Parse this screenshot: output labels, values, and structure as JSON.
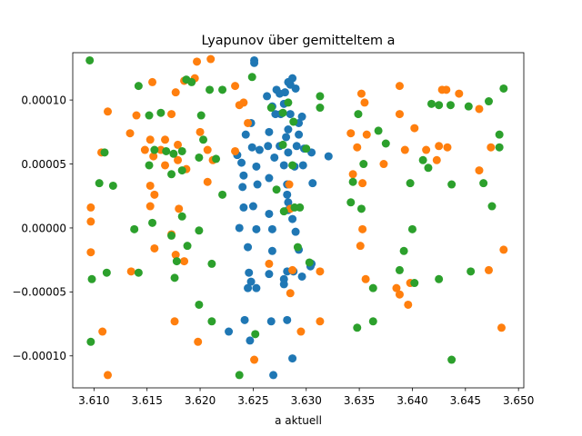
{
  "chart_data": {
    "type": "scatter",
    "title": "Lyapunov über gemitteltem a",
    "xlabel": "a aktuell",
    "ylabel": "",
    "xlim": [
      3.608,
      3.6505
    ],
    "ylim": [
      -0.000125,
      0.000137
    ],
    "xticks": [
      3.61,
      3.615,
      3.62,
      3.625,
      3.63,
      3.635,
      3.64,
      3.645,
      3.65
    ],
    "xtick_labels": [
      "3.610",
      "3.615",
      "3.620",
      "3.625",
      "3.630",
      "3.635",
      "3.640",
      "3.645",
      "3.650"
    ],
    "yticks": [
      -0.0001,
      -5e-05,
      0.0,
      5e-05,
      0.0001
    ],
    "ytick_labels": [
      "−0.00010",
      "−0.00005",
      "0.00000",
      "0.00005",
      "0.00010"
    ],
    "grid": false,
    "legend": "none",
    "series": [
      {
        "color": "#1f77b4",
        "points": [
          [
            3.6251,
            0.000131
          ],
          [
            3.6251,
            0.000129
          ],
          [
            3.6283,
            0.000114
          ],
          [
            3.6287,
            0.000117
          ],
          [
            3.6272,
            0.000108
          ],
          [
            3.6275,
            0.000105
          ],
          [
            3.628,
            0.000106
          ],
          [
            3.6285,
            0.000112
          ],
          [
            3.629,
            0.000109
          ],
          [
            3.6263,
            0.000103
          ],
          [
            3.6268,
            9.5e-05
          ],
          [
            3.6279,
            9.7e-05
          ],
          [
            3.6271,
            8.9e-05
          ],
          [
            3.6276,
            8.9e-05
          ],
          [
            3.6285,
            8.9e-05
          ],
          [
            3.6296,
            8.7e-05
          ],
          [
            3.6293,
            8.2e-05
          ],
          [
            3.6248,
            8.2e-05
          ],
          [
            3.6283,
            7.7e-05
          ],
          [
            3.6265,
            7.5e-05
          ],
          [
            3.6293,
            7.3e-05
          ],
          [
            3.6243,
            7.3e-05
          ],
          [
            3.6281,
            7.1e-05
          ],
          [
            3.6264,
            6.4e-05
          ],
          [
            3.6275,
            6.4e-05
          ],
          [
            3.6291,
            6.4e-05
          ],
          [
            3.6298,
            6.2e-05
          ],
          [
            3.6249,
            6.3e-05
          ],
          [
            3.6256,
            6.1e-05
          ],
          [
            3.6235,
            5.7e-05
          ],
          [
            3.627,
            5.5e-05
          ],
          [
            3.6283,
            5.9e-05
          ],
          [
            3.6305,
            5.9e-05
          ],
          [
            3.6321,
            5.6e-05
          ],
          [
            3.6239,
            5.1e-05
          ],
          [
            3.6253,
            4.8e-05
          ],
          [
            3.6279,
            4.9e-05
          ],
          [
            3.6289,
            4.8e-05
          ],
          [
            3.6265,
            3.9e-05
          ],
          [
            3.6297,
            4.9e-05
          ],
          [
            3.6241,
            4.1e-05
          ],
          [
            3.6254,
            3.4e-05
          ],
          [
            3.6282,
            3.4e-05
          ],
          [
            3.6306,
            3.5e-05
          ],
          [
            3.6282,
            2.6e-05
          ],
          [
            3.624,
            3.2e-05
          ],
          [
            3.6241,
            1.6e-05
          ],
          [
            3.6283,
            2e-05
          ],
          [
            3.625,
            1.7e-05
          ],
          [
            3.6265,
            1.1e-05
          ],
          [
            3.6283,
            1.4e-05
          ],
          [
            3.6237,
            0.0
          ],
          [
            3.6253,
            -1e-06
          ],
          [
            3.6268,
            -1e-06
          ],
          [
            3.6287,
            7e-06
          ],
          [
            3.629,
            -3e-06
          ],
          [
            3.6245,
            -1.5e-05
          ],
          [
            3.6268,
            -1.8e-05
          ],
          [
            3.6293,
            -1.7e-05
          ],
          [
            3.6305,
            -2.8e-05
          ],
          [
            3.6304,
            -3e-05
          ],
          [
            3.6246,
            -3.5e-05
          ],
          [
            3.6265,
            -3.6e-05
          ],
          [
            3.6282,
            -3.4e-05
          ],
          [
            3.6288,
            -3.4e-05
          ],
          [
            3.6296,
            -3.8e-05
          ],
          [
            3.6248,
            -4.2e-05
          ],
          [
            3.6279,
            -4e-05
          ],
          [
            3.6245,
            -4.7e-05
          ],
          [
            3.6253,
            -4.7e-05
          ],
          [
            3.6279,
            -4.4e-05
          ],
          [
            3.6242,
            -7.2e-05
          ],
          [
            3.6267,
            -7.3e-05
          ],
          [
            3.6282,
            -7.2e-05
          ],
          [
            3.6227,
            -8.1e-05
          ],
          [
            3.6247,
            -8.8e-05
          ],
          [
            3.6287,
            -0.000102
          ],
          [
            3.6269,
            -0.000115
          ]
        ]
      },
      {
        "color": "#ff7f0e",
        "points": [
          [
            3.621,
            0.000132
          ],
          [
            3.6197,
            0.00013
          ],
          [
            3.6195,
            0.000117
          ],
          [
            3.6177,
            0.000106
          ],
          [
            3.6185,
            0.000115
          ],
          [
            3.6155,
            0.000114
          ],
          [
            3.6233,
            0.000111
          ],
          [
            3.6241,
            9.8e-05
          ],
          [
            3.6237,
            9.6e-05
          ],
          [
            3.6173,
            8.9e-05
          ],
          [
            3.6113,
            9.1e-05
          ],
          [
            3.614,
            8.8e-05
          ],
          [
            3.62,
            7.5e-05
          ],
          [
            3.6245,
            8.2e-05
          ],
          [
            3.6134,
            7.4e-05
          ],
          [
            3.6167,
            6.9e-05
          ],
          [
            3.6153,
            6.9e-05
          ],
          [
            3.6179,
            6.5e-05
          ],
          [
            3.6148,
            6.1e-05
          ],
          [
            3.6207,
            6.1e-05
          ],
          [
            3.6163,
            6.1e-05
          ],
          [
            3.6107,
            5.9e-05
          ],
          [
            3.6156,
            5.6e-05
          ],
          [
            3.6179,
            5.3e-05
          ],
          [
            3.6212,
            5.3e-05
          ],
          [
            3.6167,
            4.9e-05
          ],
          [
            3.6187,
            4.6e-05
          ],
          [
            3.6233,
            6e-05
          ],
          [
            3.6153,
            3.3e-05
          ],
          [
            3.6207,
            3.6e-05
          ],
          [
            3.6157,
            2.6e-05
          ],
          [
            3.6097,
            1.6e-05
          ],
          [
            3.6153,
            1.7e-05
          ],
          [
            3.618,
            1.5e-05
          ],
          [
            3.6097,
            5e-06
          ],
          [
            3.6173,
            -5e-06
          ],
          [
            3.6157,
            -1.6e-05
          ],
          [
            3.6177,
            -2.1e-05
          ],
          [
            3.6185,
            -2.6e-05
          ],
          [
            3.6097,
            -1.9e-05
          ],
          [
            3.6135,
            -3.4e-05
          ],
          [
            3.6176,
            -7.3e-05
          ],
          [
            3.6198,
            -8.9e-05
          ],
          [
            3.6108,
            -8.1e-05
          ],
          [
            3.6113,
            -0.000115
          ],
          [
            3.6251,
            -0.000103
          ],
          [
            3.6265,
            -2.8e-05
          ],
          [
            3.6285,
            -5.1e-05
          ],
          [
            3.6295,
            -8.1e-05
          ],
          [
            3.6313,
            -3.4e-05
          ],
          [
            3.6313,
            -7.3e-05
          ],
          [
            3.6287,
            -3.3e-05
          ],
          [
            3.6284,
            3.4e-05
          ],
          [
            3.6285,
            1.5e-05
          ],
          [
            3.6352,
            0.000105
          ],
          [
            3.6355,
            9.8e-05
          ],
          [
            3.6388,
            0.000111
          ],
          [
            3.6428,
            0.000108
          ],
          [
            3.6432,
            0.000108
          ],
          [
            3.6444,
            0.000105
          ],
          [
            3.6463,
            9.3e-05
          ],
          [
            3.6388,
            8.9e-05
          ],
          [
            3.6342,
            7.4e-05
          ],
          [
            3.6357,
            7.3e-05
          ],
          [
            3.6348,
            6.3e-05
          ],
          [
            3.6393,
            6.1e-05
          ],
          [
            3.6413,
            6.1e-05
          ],
          [
            3.6402,
            7.8e-05
          ],
          [
            3.6425,
            6.4e-05
          ],
          [
            3.6433,
            6.3e-05
          ],
          [
            3.6423,
            5.3e-05
          ],
          [
            3.6373,
            5e-05
          ],
          [
            3.6344,
            4.2e-05
          ],
          [
            3.6353,
            3.5e-05
          ],
          [
            3.6463,
            4.5e-05
          ],
          [
            3.6474,
            6.3e-05
          ],
          [
            3.6353,
            -1e-06
          ],
          [
            3.6351,
            -1.4e-05
          ],
          [
            3.6356,
            -4e-05
          ],
          [
            3.6385,
            -4.7e-05
          ],
          [
            3.6388,
            -5.2e-05
          ],
          [
            3.6396,
            -6e-05
          ],
          [
            3.6398,
            -4.3e-05
          ],
          [
            3.6472,
            -3.3e-05
          ],
          [
            3.6484,
            -7.8e-05
          ],
          [
            3.6486,
            -1.7e-05
          ]
        ]
      },
      {
        "color": "#2ca02c",
        "points": [
          [
            3.6096,
            0.000131
          ],
          [
            3.6142,
            0.000111
          ],
          [
            3.6187,
            0.000116
          ],
          [
            3.6192,
            0.000114
          ],
          [
            3.6209,
            0.000108
          ],
          [
            3.6221,
            0.000108
          ],
          [
            3.6201,
            8.8e-05
          ],
          [
            3.6163,
            9e-05
          ],
          [
            3.6152,
            8.8e-05
          ],
          [
            3.6203,
            6.9e-05
          ],
          [
            3.6183,
            6e-05
          ],
          [
            3.6168,
            6e-05
          ],
          [
            3.6157,
            6.1e-05
          ],
          [
            3.6175,
            5.8e-05
          ],
          [
            3.611,
            5.9e-05
          ],
          [
            3.6152,
            4.9e-05
          ],
          [
            3.6199,
            5.5e-05
          ],
          [
            3.6215,
            5.4e-05
          ],
          [
            3.6173,
            4.2e-05
          ],
          [
            3.6183,
            4.5e-05
          ],
          [
            3.6105,
            3.5e-05
          ],
          [
            3.6118,
            3.3e-05
          ],
          [
            3.6221,
            2.6e-05
          ],
          [
            3.6155,
            4e-06
          ],
          [
            3.6173,
            -6e-06
          ],
          [
            3.6183,
            9e-06
          ],
          [
            3.6188,
            -1.4e-05
          ],
          [
            3.6138,
            -1e-06
          ],
          [
            3.6199,
            -2e-06
          ],
          [
            3.6178,
            -2.6e-05
          ],
          [
            3.6211,
            -2.8e-05
          ],
          [
            3.6112,
            -3.5e-05
          ],
          [
            3.6142,
            -3.5e-05
          ],
          [
            3.6176,
            -3.9e-05
          ],
          [
            3.6098,
            -4e-05
          ],
          [
            3.6199,
            -6e-05
          ],
          [
            3.6211,
            -7.3e-05
          ],
          [
            3.6097,
            -8.9e-05
          ],
          [
            3.6237,
            -0.000115
          ],
          [
            3.6252,
            -8.3e-05
          ],
          [
            3.6249,
            0.000118
          ],
          [
            3.6267,
            9.4e-05
          ],
          [
            3.6283,
            9.8e-05
          ],
          [
            3.6278,
            9e-05
          ],
          [
            3.6288,
            8.3e-05
          ],
          [
            3.6278,
            6.5e-05
          ],
          [
            3.63,
            6.2e-05
          ],
          [
            3.6287,
            4.9e-05
          ],
          [
            3.6272,
            3e-05
          ],
          [
            3.6294,
            1.6e-05
          ],
          [
            3.6289,
            1.6e-05
          ],
          [
            3.6279,
            1.3e-05
          ],
          [
            3.6292,
            -1.5e-05
          ],
          [
            3.6303,
            -2.7e-05
          ],
          [
            3.6313,
            0.000103
          ],
          [
            3.6313,
            9.4e-05
          ],
          [
            3.6349,
            8.9e-05
          ],
          [
            3.6368,
            7.6e-05
          ],
          [
            3.6375,
            6.6e-05
          ],
          [
            3.6354,
            5e-05
          ],
          [
            3.6344,
            3.6e-05
          ],
          [
            3.6342,
            2e-05
          ],
          [
            3.6352,
            1.5e-05
          ],
          [
            3.6418,
            9.7e-05
          ],
          [
            3.6436,
            9.6e-05
          ],
          [
            3.6453,
            9.5e-05
          ],
          [
            3.6472,
            9.9e-05
          ],
          [
            3.6486,
            0.000109
          ],
          [
            3.6425,
            9.6e-05
          ],
          [
            3.6437,
            3.4e-05
          ],
          [
            3.6482,
            7.3e-05
          ],
          [
            3.6482,
            6.3e-05
          ],
          [
            3.6467,
            3.5e-05
          ],
          [
            3.641,
            5.3e-05
          ],
          [
            3.6415,
            4.7e-05
          ],
          [
            3.6398,
            3.5e-05
          ],
          [
            3.6475,
            1.7e-05
          ],
          [
            3.6392,
            -1.8e-05
          ],
          [
            3.64,
            -1e-06
          ],
          [
            3.6388,
            -3.3e-05
          ],
          [
            3.6363,
            -4.7e-05
          ],
          [
            3.6402,
            -4.3e-05
          ],
          [
            3.6425,
            -4e-05
          ],
          [
            3.6455,
            -3.4e-05
          ],
          [
            3.6363,
            -7.3e-05
          ],
          [
            3.6348,
            -7.8e-05
          ],
          [
            3.6437,
            -0.000103
          ]
        ]
      }
    ]
  }
}
